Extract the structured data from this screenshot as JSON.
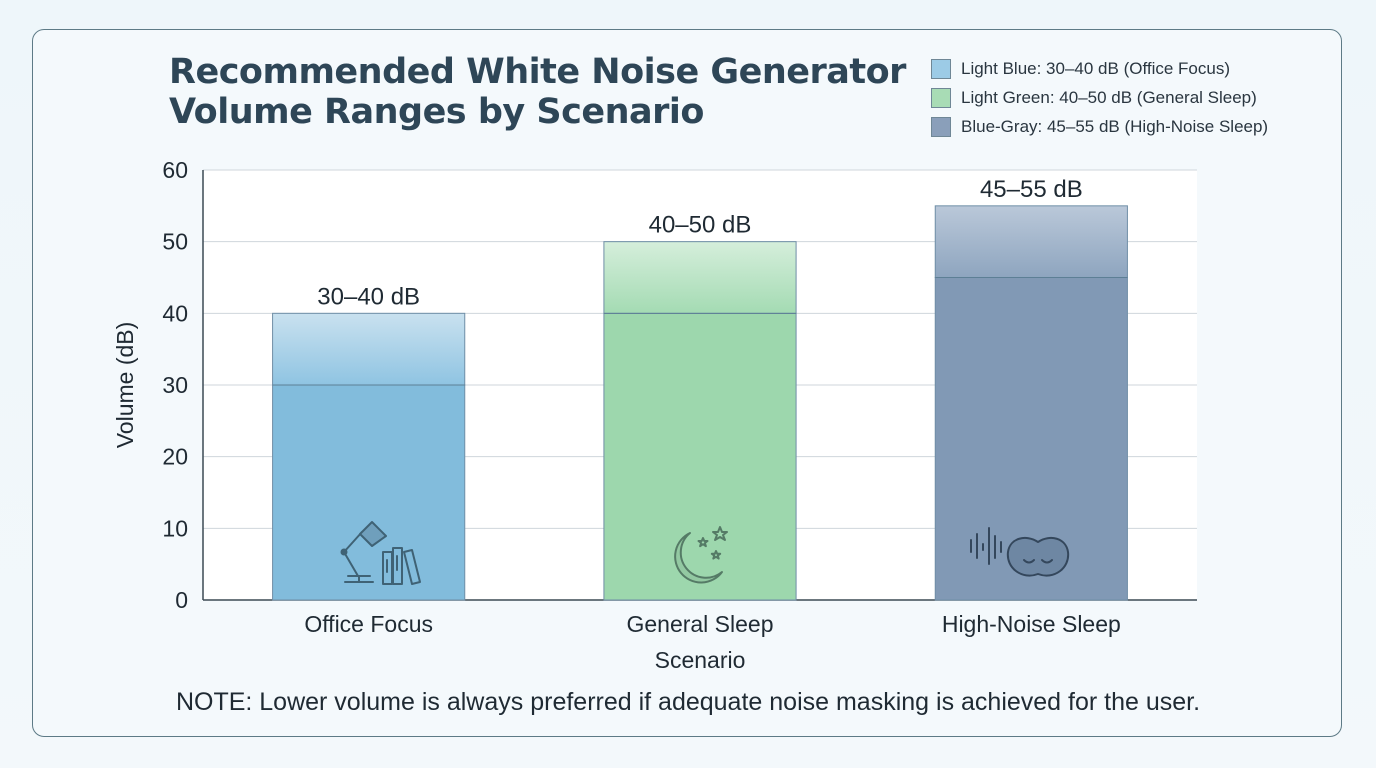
{
  "chart_data": {
    "type": "bar",
    "title": "Recommended White Noise Generator Volume Ranges by Scenario",
    "xlabel": "Scenario",
    "ylabel": "Volume (dB)",
    "ylim": [
      0,
      60
    ],
    "yticks": [
      0,
      10,
      20,
      30,
      40,
      50,
      60
    ],
    "grid": true,
    "legend_position": "top-right",
    "categories": [
      "Office Focus",
      "General Sleep",
      "High-Noise Sleep"
    ],
    "ranges": [
      {
        "low": 30,
        "high": 40,
        "label": "30–40 dB",
        "color": "#82bcdc",
        "icon": "desk-lamp-books-icon"
      },
      {
        "low": 40,
        "high": 50,
        "label": "40–50 dB",
        "color": "#9dd7ad",
        "icon": "moon-stars-icon"
      },
      {
        "low": 45,
        "high": 55,
        "label": "45–55 dB",
        "color": "#8199b5",
        "icon": "sound-wave-sleep-mask-icon"
      }
    ],
    "legend": [
      {
        "label": "Light Blue: 30–40 dB (Office Focus)",
        "color": "#9ccbe6"
      },
      {
        "label": "Light Green: 40–50 dB (General Sleep)",
        "color": "#a8dcb5"
      },
      {
        "label": "Blue-Gray: 45–55 dB (High-Noise Sleep)",
        "color": "#8a9fba"
      }
    ]
  },
  "note": "NOTE: Lower volume is always preferred if adequate noise masking is achieved for the user."
}
